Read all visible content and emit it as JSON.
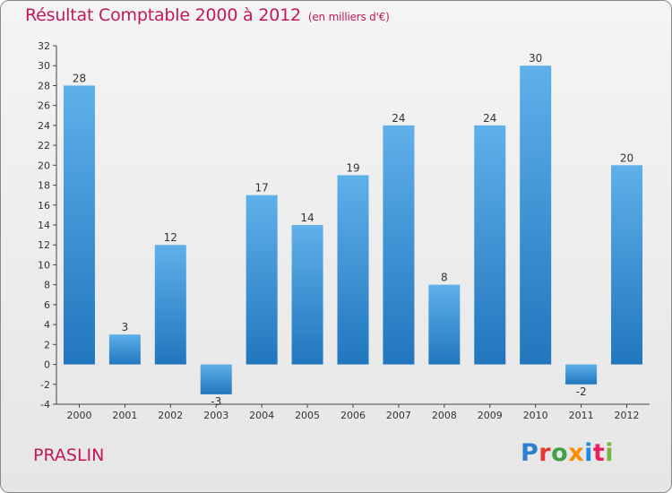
{
  "header": {
    "title": "Résultat Comptable 2000 à 2012",
    "subtitle": "(en milliers d'€)"
  },
  "footer": {
    "place": "PRASLIN",
    "logo_letters": [
      {
        "ch": "P",
        "color": "#2e7fd0"
      },
      {
        "ch": "r",
        "color": "#e53935"
      },
      {
        "ch": "o",
        "color": "#43a047"
      },
      {
        "ch": "x",
        "color": "#fb8c00"
      },
      {
        "ch": "i",
        "color": "#1e88e5"
      },
      {
        "ch": "t",
        "color": "#e91e63"
      },
      {
        "ch": "i",
        "color": "#7cb342"
      }
    ]
  },
  "colors": {
    "bar_top": "#5fb0ea",
    "bar_bottom": "#2176bd",
    "title": "#c2185b"
  },
  "chart_data": {
    "type": "bar",
    "title": "Résultat Comptable 2000 à 2012",
    "subtitle": "(en milliers d'€)",
    "xlabel": "",
    "ylabel": "",
    "categories": [
      "2000",
      "2001",
      "2002",
      "2003",
      "2004",
      "2005",
      "2006",
      "2007",
      "2008",
      "2009",
      "2010",
      "2011",
      "2012"
    ],
    "values": [
      28,
      3,
      12,
      -3,
      17,
      14,
      19,
      24,
      8,
      24,
      30,
      -2,
      20
    ],
    "ylim": [
      -4,
      32
    ],
    "yticks": [
      -4,
      -2,
      0,
      2,
      4,
      6,
      8,
      10,
      12,
      14,
      16,
      18,
      20,
      22,
      24,
      26,
      28,
      30,
      32
    ],
    "grid": false,
    "legend": "none"
  }
}
